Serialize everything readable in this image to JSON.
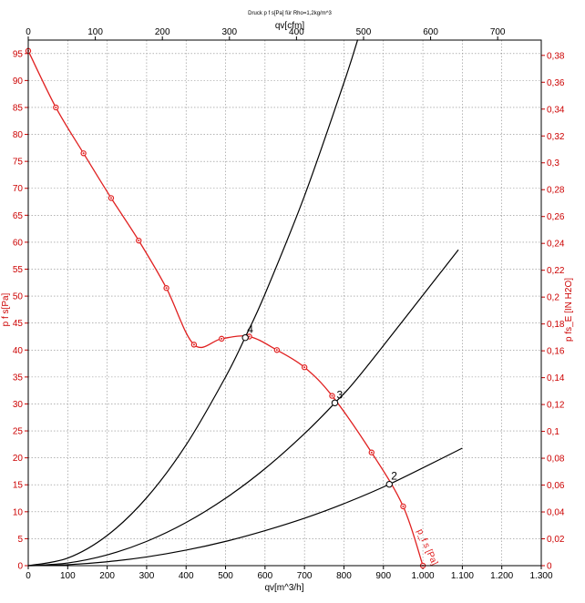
{
  "chart_data": {
    "type": "line",
    "title": "Druck p f s[Pa] für Rho=1,2kg/m^3",
    "xlabel": "qv[m^3/h]",
    "x2label": "qv[cfm]",
    "ylabel": "p f s[Pa]",
    "y2label": "p fs_E [IN H2O]",
    "xlim": [
      0,
      1300
    ],
    "x2lim": [
      0,
      765
    ],
    "ylim": [
      0,
      97.5
    ],
    "y2lim": [
      0,
      0.3914
    ],
    "grid": true,
    "colors": {
      "curve": "#e02020",
      "system": "#000000",
      "grid": "#888888",
      "frame": "#000000",
      "left_axis": "#cc0000",
      "right_axis": "#cc0000"
    },
    "x_ticks": [
      {
        "v": 0,
        "label": "0"
      },
      {
        "v": 100,
        "label": "100"
      },
      {
        "v": 200,
        "label": "200"
      },
      {
        "v": 300,
        "label": "300"
      },
      {
        "v": 400,
        "label": "400"
      },
      {
        "v": 500,
        "label": "500"
      },
      {
        "v": 600,
        "label": "600"
      },
      {
        "v": 700,
        "label": "700"
      },
      {
        "v": 800,
        "label": "800"
      },
      {
        "v": 900,
        "label": "900"
      },
      {
        "v": 1000,
        "label": "1.000"
      },
      {
        "v": 1100,
        "label": "1.100"
      },
      {
        "v": 1200,
        "label": "1.200"
      },
      {
        "v": 1300,
        "label": "1.300"
      }
    ],
    "x2_ticks": [
      {
        "v": 0,
        "label": "0"
      },
      {
        "v": 100,
        "label": "100"
      },
      {
        "v": 200,
        "label": "200"
      },
      {
        "v": 300,
        "label": "300"
      },
      {
        "v": 400,
        "label": "400"
      },
      {
        "v": 500,
        "label": "500"
      },
      {
        "v": 600,
        "label": "600"
      },
      {
        "v": 700,
        "label": "700"
      }
    ],
    "y_ticks": [
      {
        "v": 0,
        "label": "0"
      },
      {
        "v": 5,
        "label": "5"
      },
      {
        "v": 10,
        "label": "10"
      },
      {
        "v": 15,
        "label": "15"
      },
      {
        "v": 20,
        "label": "20"
      },
      {
        "v": 25,
        "label": "25"
      },
      {
        "v": 30,
        "label": "30"
      },
      {
        "v": 35,
        "label": "35"
      },
      {
        "v": 40,
        "label": "40"
      },
      {
        "v": 45,
        "label": "45"
      },
      {
        "v": 50,
        "label": "50"
      },
      {
        "v": 55,
        "label": "55"
      },
      {
        "v": 60,
        "label": "60"
      },
      {
        "v": 65,
        "label": "65"
      },
      {
        "v": 70,
        "label": "70"
      },
      {
        "v": 75,
        "label": "75"
      },
      {
        "v": 80,
        "label": "80"
      },
      {
        "v": 85,
        "label": "85"
      },
      {
        "v": 90,
        "label": "90"
      },
      {
        "v": 95,
        "label": "95"
      }
    ],
    "y2_ticks": [
      {
        "v": 0,
        "label": "0"
      },
      {
        "v": 0.02,
        "label": "0,02"
      },
      {
        "v": 0.04,
        "label": "0,04"
      },
      {
        "v": 0.06,
        "label": "0,06"
      },
      {
        "v": 0.08,
        "label": "0,08"
      },
      {
        "v": 0.1,
        "label": "0,1"
      },
      {
        "v": 0.12,
        "label": "0,12"
      },
      {
        "v": 0.14,
        "label": "0,14"
      },
      {
        "v": 0.16,
        "label": "0,16"
      },
      {
        "v": 0.18,
        "label": "0,18"
      },
      {
        "v": 0.2,
        "label": "0,2"
      },
      {
        "v": 0.22,
        "label": "0,22"
      },
      {
        "v": 0.24,
        "label": "0,24"
      },
      {
        "v": 0.26,
        "label": "0,26"
      },
      {
        "v": 0.28,
        "label": "0,28"
      },
      {
        "v": 0.3,
        "label": "0,3"
      },
      {
        "v": 0.32,
        "label": "0,32"
      },
      {
        "v": 0.34,
        "label": "0,34"
      },
      {
        "v": 0.36,
        "label": "0,36"
      },
      {
        "v": 0.38,
        "label": "0,38"
      }
    ],
    "series": [
      {
        "name": "p f s",
        "kind": "fan-curve",
        "x": [
          0,
          70,
          140,
          210,
          280,
          350,
          420,
          490,
          560,
          630,
          700,
          770,
          870,
          950,
          1000
        ],
        "y": [
          95.5,
          85,
          76.5,
          68.2,
          60.3,
          51.5,
          41,
          42.1,
          42.5,
          40,
          36.8,
          31.5,
          21,
          11,
          0
        ]
      },
      {
        "name": "system-4",
        "kind": "system-curve",
        "x": [
          0,
          100,
          200,
          300,
          400,
          500,
          550,
          600,
          700,
          800,
          835
        ],
        "y": [
          0,
          1.4,
          5.6,
          12.6,
          22.4,
          35,
          42.4,
          50.4,
          68.6,
          89.6,
          97.6
        ]
      },
      {
        "name": "system-3",
        "kind": "system-curve",
        "x": [
          0,
          100,
          200,
          300,
          400,
          500,
          600,
          700,
          777,
          850,
          1090
        ],
        "y": [
          0,
          0.5,
          2,
          4.5,
          8,
          12.5,
          18,
          24.5,
          30.2,
          36.2,
          58.6
        ]
      },
      {
        "name": "system-2",
        "kind": "system-curve",
        "x": [
          0,
          100,
          200,
          300,
          400,
          500,
          600,
          700,
          800,
          915,
          1100
        ],
        "y": [
          0,
          0.18,
          0.72,
          1.62,
          2.88,
          4.5,
          6.5,
          8.8,
          11.5,
          15.1,
          21.8
        ]
      }
    ],
    "operating_points": [
      {
        "label": "4",
        "x": 550,
        "y": 42.3
      },
      {
        "label": "3",
        "x": 777,
        "y": 30.2
      },
      {
        "label": "2",
        "x": 915,
        "y": 15.1
      }
    ],
    "annotations": [
      {
        "text": "p_f s [Pa]",
        "x": 985,
        "y": 6.5
      }
    ]
  }
}
